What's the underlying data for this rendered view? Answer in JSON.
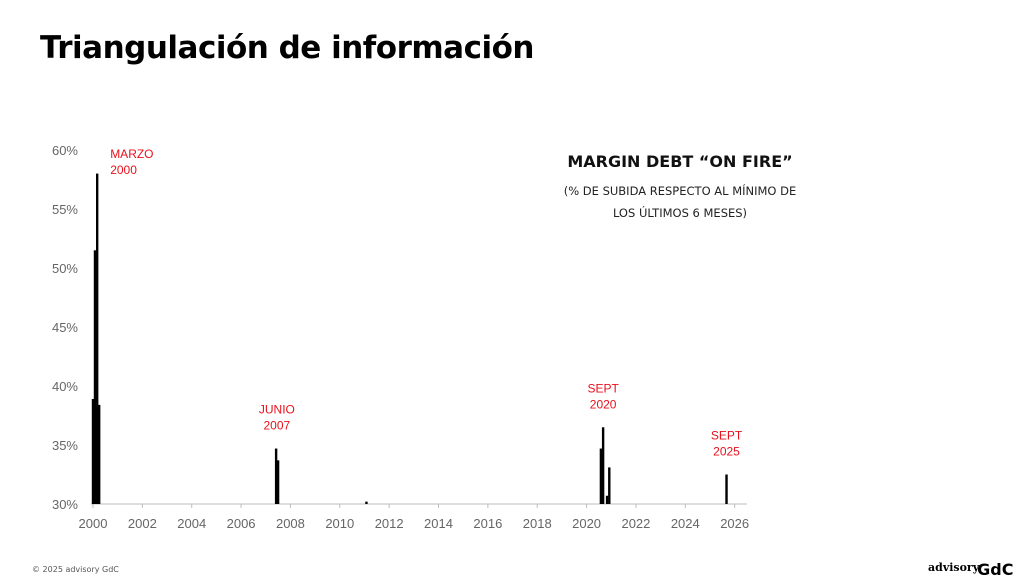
{
  "slide": {
    "title": "Triangulación de información",
    "footer": "© 2025 advisory GdC",
    "logo_word": "advisory",
    "logo_mark": "GdC"
  },
  "chart_data": {
    "type": "bar",
    "title": "MARGIN DEBT “ON FIRE”",
    "subtitle_lines": [
      "(% DE SUBIDA RESPECTO AL MÍNIMO DE",
      "LOS ÚLTIMOS 6 MESES)"
    ],
    "xlabel": "",
    "ylabel": "",
    "xlim": [
      2000,
      2026.5
    ],
    "ylim": [
      30,
      60
    ],
    "x_ticks": [
      2000,
      2002,
      2004,
      2006,
      2008,
      2010,
      2012,
      2014,
      2016,
      2018,
      2020,
      2022,
      2024,
      2026
    ],
    "y_ticks": [
      30,
      35,
      40,
      45,
      50,
      55,
      60
    ],
    "y_tick_suffix": "%",
    "grid": false,
    "bar_color": "#000000",
    "annotation_color": "#e8111c",
    "points": [
      {
        "x": 2000.0,
        "y": 38.9
      },
      {
        "x": 2000.08,
        "y": 51.5
      },
      {
        "x": 2000.17,
        "y": 58.0
      },
      {
        "x": 2000.25,
        "y": 38.4
      },
      {
        "x": 2007.42,
        "y": 34.7
      },
      {
        "x": 2007.5,
        "y": 33.7
      },
      {
        "x": 2011.08,
        "y": 30.2
      },
      {
        "x": 2020.58,
        "y": 34.7
      },
      {
        "x": 2020.67,
        "y": 36.5
      },
      {
        "x": 2020.83,
        "y": 30.7
      },
      {
        "x": 2020.92,
        "y": 33.1
      },
      {
        "x": 2025.67,
        "y": 32.5
      }
    ],
    "annotations": [
      {
        "lines": [
          "MARZO",
          "2000"
        ],
        "x": 2000.17,
        "align": "left"
      },
      {
        "lines": [
          "JUNIO",
          "2007"
        ],
        "x": 2007.45,
        "align": "center"
      },
      {
        "lines": [
          "SEPT",
          "2020"
        ],
        "x": 2020.67,
        "align": "center"
      },
      {
        "lines": [
          "SEPT",
          "2025"
        ],
        "x": 2025.67,
        "align": "center"
      }
    ]
  }
}
